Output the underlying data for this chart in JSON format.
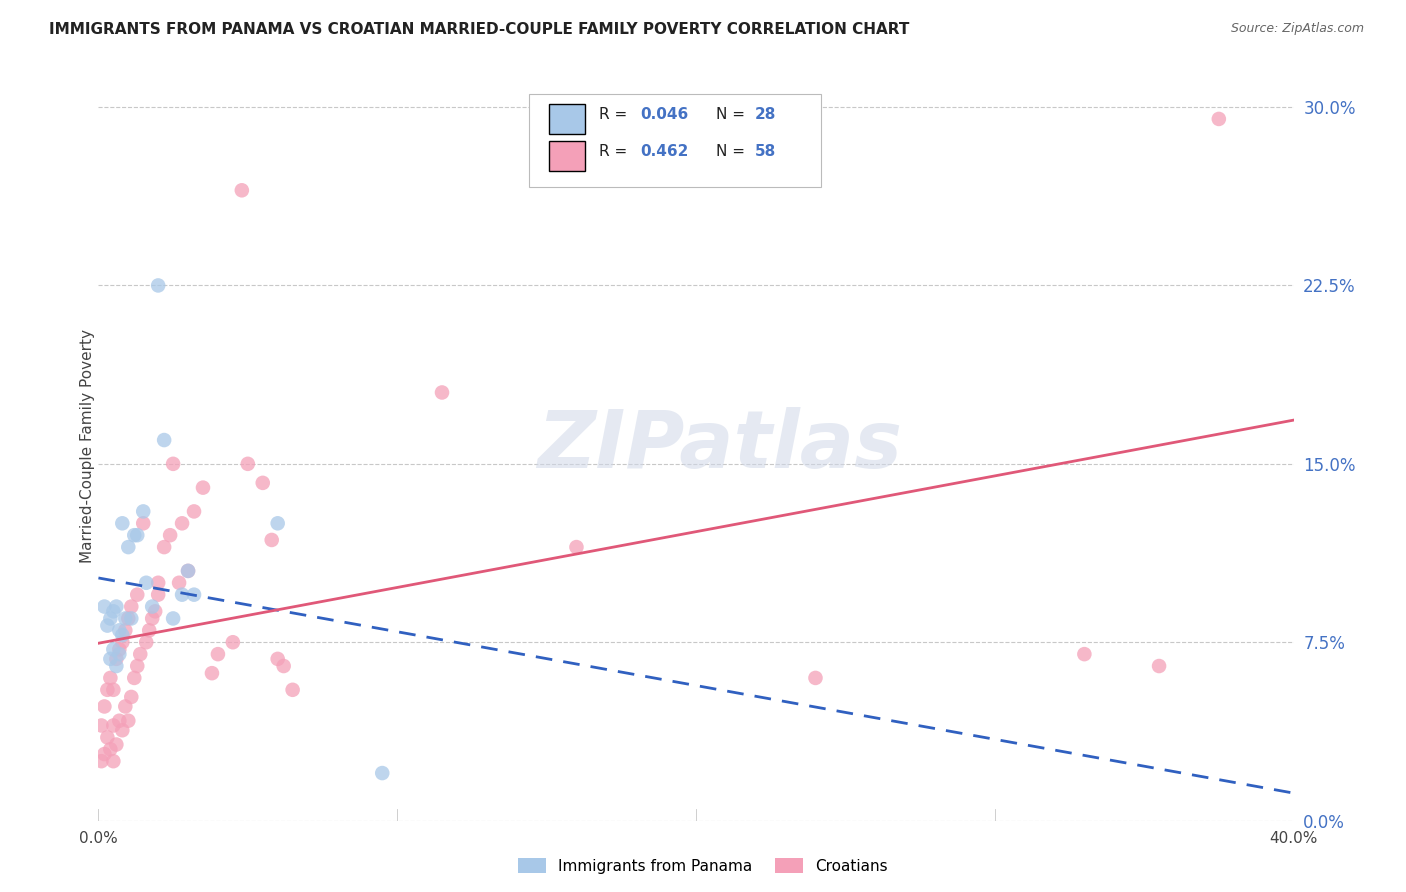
{
  "title": "IMMIGRANTS FROM PANAMA VS CROATIAN MARRIED-COUPLE FAMILY POVERTY CORRELATION CHART",
  "source": "Source: ZipAtlas.com",
  "ylabel": "Married-Couple Family Poverty",
  "series1_label": "Immigrants from Panama",
  "series2_label": "Croatians",
  "series1_color": "#a8c8e8",
  "series2_color": "#f4a0b8",
  "series1_line_color": "#3060c0",
  "series2_line_color": "#e05878",
  "series1_R": 0.046,
  "series2_R": 0.462,
  "series1_N": 28,
  "series2_N": 58,
  "background_color": "#ffffff",
  "grid_color": "#c8c8c8",
  "xmin": 0.0,
  "xmax": 0.4,
  "ymin": 0.0,
  "ymax": 0.315,
  "ytick_vals": [
    0.0,
    0.075,
    0.15,
    0.225,
    0.3
  ],
  "xtick_positions": [
    0.0,
    0.1,
    0.2,
    0.3,
    0.4
  ],
  "xtick_labels_show": [
    "0.0%",
    "",
    "",
    "",
    "40.0%"
  ],
  "watermark_text": "ZIPatlas",
  "series1_x": [
    0.002,
    0.003,
    0.004,
    0.004,
    0.005,
    0.005,
    0.006,
    0.006,
    0.007,
    0.007,
    0.008,
    0.008,
    0.009,
    0.01,
    0.011,
    0.012,
    0.013,
    0.015,
    0.016,
    0.018,
    0.02,
    0.022,
    0.025,
    0.028,
    0.03,
    0.032,
    0.06,
    0.095
  ],
  "series1_y": [
    0.09,
    0.082,
    0.085,
    0.068,
    0.088,
    0.072,
    0.09,
    0.065,
    0.08,
    0.07,
    0.125,
    0.078,
    0.085,
    0.115,
    0.085,
    0.12,
    0.12,
    0.13,
    0.1,
    0.09,
    0.225,
    0.16,
    0.085,
    0.095,
    0.105,
    0.095,
    0.125,
    0.02
  ],
  "series2_x": [
    0.001,
    0.001,
    0.002,
    0.002,
    0.003,
    0.003,
    0.004,
    0.004,
    0.005,
    0.005,
    0.005,
    0.006,
    0.006,
    0.007,
    0.007,
    0.008,
    0.008,
    0.009,
    0.009,
    0.01,
    0.01,
    0.011,
    0.011,
    0.012,
    0.013,
    0.013,
    0.014,
    0.015,
    0.016,
    0.017,
    0.018,
    0.019,
    0.02,
    0.02,
    0.022,
    0.024,
    0.025,
    0.027,
    0.028,
    0.03,
    0.032,
    0.035,
    0.038,
    0.04,
    0.045,
    0.048,
    0.05,
    0.055,
    0.058,
    0.06,
    0.062,
    0.065,
    0.115,
    0.16,
    0.24,
    0.33,
    0.355,
    0.375
  ],
  "series2_y": [
    0.025,
    0.04,
    0.028,
    0.048,
    0.035,
    0.055,
    0.03,
    0.06,
    0.025,
    0.04,
    0.055,
    0.032,
    0.068,
    0.042,
    0.072,
    0.038,
    0.075,
    0.048,
    0.08,
    0.042,
    0.085,
    0.052,
    0.09,
    0.06,
    0.095,
    0.065,
    0.07,
    0.125,
    0.075,
    0.08,
    0.085,
    0.088,
    0.095,
    0.1,
    0.115,
    0.12,
    0.15,
    0.1,
    0.125,
    0.105,
    0.13,
    0.14,
    0.062,
    0.07,
    0.075,
    0.265,
    0.15,
    0.142,
    0.118,
    0.068,
    0.065,
    0.055,
    0.18,
    0.115,
    0.06,
    0.07,
    0.065,
    0.295
  ]
}
